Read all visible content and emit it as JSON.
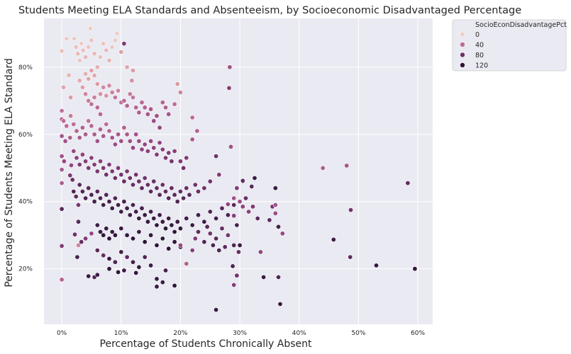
{
  "chart_data": {
    "type": "scatter",
    "title": "Students Meeting ELA Standards and Absenteeism, by Socioeconomic Disadvantaged Percentage",
    "xlabel": "Percentage of Students Chronically Absent",
    "ylabel": "Percentage of Students Meeting ELA Standard",
    "xlim": [
      -0.03,
      0.625
    ],
    "ylim": [
      0.035,
      0.945
    ],
    "x_ticks": [
      0.0,
      0.1,
      0.2,
      0.3,
      0.4,
      0.5,
      0.6
    ],
    "x_tick_labels": [
      "0%",
      "10%",
      "20%",
      "30%",
      "40%",
      "50%",
      "60%"
    ],
    "y_ticks": [
      0.2,
      0.4,
      0.6,
      0.8
    ],
    "y_tick_labels": [
      "20%",
      "40%",
      "60%",
      "80%"
    ],
    "grid": true,
    "legend": {
      "title": "SocioEconDisadvantagePct",
      "placement": "outside-top-right",
      "entries": [
        {
          "label": "0",
          "color": "#efd0c8"
        },
        {
          "label": "40",
          "color": "#bc6c95"
        },
        {
          "label": "80",
          "color": "#6c3268"
        },
        {
          "label": "120",
          "color": "#2b1638"
        }
      ]
    },
    "hue_range": [
      0,
      120
    ],
    "points": [
      [
        0.0,
        0.848,
        8
      ],
      [
        0.0,
        0.67,
        38
      ],
      [
        0.0,
        0.645,
        44
      ],
      [
        0.0,
        0.595,
        52
      ],
      [
        0.0,
        0.535,
        55
      ],
      [
        0.0,
        0.495,
        50
      ],
      [
        0.0,
        0.455,
        48
      ],
      [
        0.0,
        0.378,
        90
      ],
      [
        0.0,
        0.268,
        70
      ],
      [
        0.0,
        0.168,
        45
      ],
      [
        0.003,
        0.74,
        18
      ],
      [
        0.003,
        0.64,
        40
      ],
      [
        0.008,
        0.885,
        4
      ],
      [
        0.012,
        0.776,
        12
      ],
      [
        0.015,
        0.71,
        22
      ],
      [
        0.008,
        0.625,
        40
      ],
      [
        0.014,
        0.59,
        48
      ],
      [
        0.006,
        0.58,
        55
      ],
      [
        0.004,
        0.52,
        60
      ],
      [
        0.016,
        0.508,
        62
      ],
      [
        0.014,
        0.478,
        72
      ],
      [
        0.018,
        0.465,
        80
      ],
      [
        0.02,
        0.43,
        95
      ],
      [
        0.024,
        0.415,
        88
      ],
      [
        0.028,
        0.39,
        75
      ],
      [
        0.028,
        0.34,
        92
      ],
      [
        0.022,
        0.302,
        78
      ],
      [
        0.026,
        0.235,
        100
      ],
      [
        0.028,
        0.27,
        30
      ],
      [
        0.033,
        0.28,
        85
      ],
      [
        0.045,
        0.178,
        110
      ],
      [
        0.055,
        0.175,
        95
      ],
      [
        0.06,
        0.182,
        105
      ],
      [
        0.021,
        0.885,
        5
      ],
      [
        0.024,
        0.86,
        8
      ],
      [
        0.027,
        0.84,
        10
      ],
      [
        0.03,
        0.82,
        6
      ],
      [
        0.033,
        0.87,
        4
      ],
      [
        0.036,
        0.85,
        8
      ],
      [
        0.04,
        0.83,
        12
      ],
      [
        0.045,
        0.86,
        6
      ],
      [
        0.048,
        0.915,
        3
      ],
      [
        0.05,
        0.88,
        7
      ],
      [
        0.055,
        0.84,
        10
      ],
      [
        0.06,
        0.8,
        14
      ],
      [
        0.065,
        0.83,
        8
      ],
      [
        0.07,
        0.87,
        6
      ],
      [
        0.075,
        0.85,
        10
      ],
      [
        0.08,
        0.82,
        12
      ],
      [
        0.085,
        0.86,
        5
      ],
      [
        0.09,
        0.88,
        4
      ],
      [
        0.093,
        0.9,
        3
      ],
      [
        0.1,
        0.845,
        20
      ],
      [
        0.105,
        0.87,
        72
      ],
      [
        0.11,
        0.8,
        18
      ],
      [
        0.12,
        0.79,
        22
      ],
      [
        0.118,
        0.76,
        26
      ],
      [
        0.04,
        0.78,
        14
      ],
      [
        0.045,
        0.765,
        18
      ],
      [
        0.05,
        0.79,
        20
      ],
      [
        0.055,
        0.775,
        16
      ],
      [
        0.06,
        0.75,
        22
      ],
      [
        0.065,
        0.72,
        26
      ],
      [
        0.07,
        0.74,
        28
      ],
      [
        0.075,
        0.715,
        24
      ],
      [
        0.03,
        0.76,
        16
      ],
      [
        0.035,
        0.74,
        20
      ],
      [
        0.04,
        0.72,
        30
      ],
      [
        0.045,
        0.7,
        34
      ],
      [
        0.05,
        0.69,
        38
      ],
      [
        0.055,
        0.71,
        32
      ],
      [
        0.06,
        0.68,
        40
      ],
      [
        0.065,
        0.66,
        42
      ],
      [
        0.08,
        0.745,
        28
      ],
      [
        0.085,
        0.725,
        32
      ],
      [
        0.09,
        0.71,
        36
      ],
      [
        0.095,
        0.73,
        30
      ],
      [
        0.1,
        0.695,
        38
      ],
      [
        0.105,
        0.7,
        40
      ],
      [
        0.11,
        0.685,
        44
      ],
      [
        0.115,
        0.72,
        34
      ],
      [
        0.12,
        0.71,
        36
      ],
      [
        0.125,
        0.68,
        44
      ],
      [
        0.13,
        0.665,
        48
      ],
      [
        0.135,
        0.695,
        42
      ],
      [
        0.14,
        0.68,
        46
      ],
      [
        0.145,
        0.66,
        52
      ],
      [
        0.15,
        0.675,
        50
      ],
      [
        0.155,
        0.64,
        58
      ],
      [
        0.16,
        0.655,
        55
      ],
      [
        0.165,
        0.62,
        62
      ],
      [
        0.17,
        0.695,
        44
      ],
      [
        0.175,
        0.68,
        46
      ],
      [
        0.18,
        0.66,
        52
      ],
      [
        0.19,
        0.69,
        40
      ],
      [
        0.195,
        0.75,
        22
      ],
      [
        0.2,
        0.725,
        30
      ],
      [
        0.015,
        0.655,
        34
      ],
      [
        0.02,
        0.63,
        40
      ],
      [
        0.025,
        0.61,
        44
      ],
      [
        0.03,
        0.59,
        50
      ],
      [
        0.035,
        0.62,
        46
      ],
      [
        0.04,
        0.6,
        48
      ],
      [
        0.045,
        0.64,
        38
      ],
      [
        0.05,
        0.625,
        42
      ],
      [
        0.055,
        0.6,
        48
      ],
      [
        0.06,
        0.58,
        54
      ],
      [
        0.065,
        0.615,
        46
      ],
      [
        0.07,
        0.595,
        50
      ],
      [
        0.075,
        0.63,
        40
      ],
      [
        0.08,
        0.61,
        44
      ],
      [
        0.085,
        0.59,
        52
      ],
      [
        0.09,
        0.57,
        58
      ],
      [
        0.095,
        0.6,
        50
      ],
      [
        0.1,
        0.58,
        56
      ],
      [
        0.105,
        0.62,
        46
      ],
      [
        0.11,
        0.6,
        50
      ],
      [
        0.115,
        0.58,
        56
      ],
      [
        0.12,
        0.56,
        62
      ],
      [
        0.125,
        0.6,
        54
      ],
      [
        0.13,
        0.58,
        58
      ],
      [
        0.135,
        0.555,
        64
      ],
      [
        0.14,
        0.57,
        62
      ],
      [
        0.145,
        0.55,
        66
      ],
      [
        0.15,
        0.58,
        60
      ],
      [
        0.155,
        0.56,
        64
      ],
      [
        0.16,
        0.54,
        70
      ],
      [
        0.165,
        0.575,
        62
      ],
      [
        0.17,
        0.555,
        66
      ],
      [
        0.175,
        0.53,
        72
      ],
      [
        0.18,
        0.545,
        70
      ],
      [
        0.185,
        0.52,
        76
      ],
      [
        0.19,
        0.55,
        66
      ],
      [
        0.2,
        0.52,
        72
      ],
      [
        0.205,
        0.5,
        78
      ],
      [
        0.21,
        0.53,
        70
      ],
      [
        0.22,
        0.585,
        50
      ],
      [
        0.228,
        0.61,
        46
      ],
      [
        0.22,
        0.65,
        40
      ],
      [
        0.02,
        0.55,
        60
      ],
      [
        0.025,
        0.53,
        66
      ],
      [
        0.03,
        0.51,
        70
      ],
      [
        0.035,
        0.54,
        64
      ],
      [
        0.04,
        0.52,
        68
      ],
      [
        0.045,
        0.5,
        72
      ],
      [
        0.05,
        0.53,
        66
      ],
      [
        0.055,
        0.51,
        70
      ],
      [
        0.06,
        0.49,
        74
      ],
      [
        0.065,
        0.52,
        68
      ],
      [
        0.07,
        0.5,
        72
      ],
      [
        0.075,
        0.48,
        78
      ],
      [
        0.08,
        0.51,
        70
      ],
      [
        0.085,
        0.49,
        74
      ],
      [
        0.09,
        0.47,
        80
      ],
      [
        0.095,
        0.5,
        72
      ],
      [
        0.1,
        0.48,
        76
      ],
      [
        0.105,
        0.46,
        82
      ],
      [
        0.11,
        0.49,
        74
      ],
      [
        0.115,
        0.47,
        78
      ],
      [
        0.12,
        0.45,
        84
      ],
      [
        0.125,
        0.48,
        76
      ],
      [
        0.13,
        0.46,
        80
      ],
      [
        0.135,
        0.44,
        86
      ],
      [
        0.14,
        0.47,
        78
      ],
      [
        0.145,
        0.45,
        82
      ],
      [
        0.15,
        0.43,
        88
      ],
      [
        0.155,
        0.46,
        80
      ],
      [
        0.16,
        0.44,
        84
      ],
      [
        0.165,
        0.42,
        90
      ],
      [
        0.17,
        0.45,
        82
      ],
      [
        0.175,
        0.43,
        86
      ],
      [
        0.18,
        0.41,
        92
      ],
      [
        0.185,
        0.44,
        84
      ],
      [
        0.19,
        0.42,
        88
      ],
      [
        0.195,
        0.4,
        94
      ],
      [
        0.2,
        0.43,
        86
      ],
      [
        0.205,
        0.41,
        90
      ],
      [
        0.21,
        0.44,
        82
      ],
      [
        0.215,
        0.42,
        88
      ],
      [
        0.225,
        0.45,
        80
      ],
      [
        0.23,
        0.43,
        84
      ],
      [
        0.24,
        0.44,
        80
      ],
      [
        0.25,
        0.46,
        76
      ],
      [
        0.26,
        0.535,
        80
      ],
      [
        0.265,
        0.48,
        70
      ],
      [
        0.03,
        0.45,
        90
      ],
      [
        0.035,
        0.43,
        94
      ],
      [
        0.04,
        0.41,
        98
      ],
      [
        0.045,
        0.44,
        90
      ],
      [
        0.05,
        0.42,
        96
      ],
      [
        0.055,
        0.4,
        100
      ],
      [
        0.06,
        0.43,
        92
      ],
      [
        0.065,
        0.41,
        98
      ],
      [
        0.07,
        0.39,
        102
      ],
      [
        0.075,
        0.42,
        94
      ],
      [
        0.08,
        0.4,
        100
      ],
      [
        0.085,
        0.38,
        104
      ],
      [
        0.09,
        0.41,
        96
      ],
      [
        0.095,
        0.39,
        102
      ],
      [
        0.1,
        0.37,
        106
      ],
      [
        0.105,
        0.4,
        98
      ],
      [
        0.11,
        0.38,
        104
      ],
      [
        0.115,
        0.36,
        108
      ],
      [
        0.12,
        0.39,
        100
      ],
      [
        0.125,
        0.37,
        106
      ],
      [
        0.13,
        0.35,
        110
      ],
      [
        0.135,
        0.38,
        102
      ],
      [
        0.14,
        0.36,
        108
      ],
      [
        0.145,
        0.34,
        112
      ],
      [
        0.15,
        0.37,
        104
      ],
      [
        0.155,
        0.35,
        110
      ],
      [
        0.16,
        0.33,
        114
      ],
      [
        0.165,
        0.36,
        106
      ],
      [
        0.17,
        0.34,
        110
      ],
      [
        0.175,
        0.32,
        116
      ],
      [
        0.18,
        0.35,
        108
      ],
      [
        0.185,
        0.33,
        112
      ],
      [
        0.19,
        0.31,
        118
      ],
      [
        0.195,
        0.34,
        110
      ],
      [
        0.2,
        0.32,
        114
      ],
      [
        0.21,
        0.35,
        106
      ],
      [
        0.22,
        0.33,
        110
      ],
      [
        0.23,
        0.36,
        102
      ],
      [
        0.24,
        0.34,
        106
      ],
      [
        0.25,
        0.37,
        98
      ],
      [
        0.26,
        0.35,
        102
      ],
      [
        0.27,
        0.38,
        94
      ],
      [
        0.28,
        0.36,
        98
      ],
      [
        0.29,
        0.39,
        90
      ],
      [
        0.06,
        0.33,
        108
      ],
      [
        0.065,
        0.31,
        112
      ],
      [
        0.07,
        0.3,
        116
      ],
      [
        0.075,
        0.32,
        110
      ],
      [
        0.08,
        0.29,
        118
      ],
      [
        0.085,
        0.31,
        112
      ],
      [
        0.09,
        0.3,
        116
      ],
      [
        0.1,
        0.32,
        110
      ],
      [
        0.11,
        0.3,
        114
      ],
      [
        0.12,
        0.29,
        118
      ],
      [
        0.13,
        0.31,
        112
      ],
      [
        0.14,
        0.28,
        120
      ],
      [
        0.15,
        0.3,
        114
      ],
      [
        0.16,
        0.27,
        120
      ],
      [
        0.17,
        0.29,
        116
      ],
      [
        0.18,
        0.26,
        120
      ],
      [
        0.19,
        0.28,
        116
      ],
      [
        0.2,
        0.265,
        118
      ],
      [
        0.04,
        0.29,
        70
      ],
      [
        0.05,
        0.305,
        60
      ],
      [
        0.06,
        0.255,
        90
      ],
      [
        0.07,
        0.24,
        84
      ],
      [
        0.08,
        0.23,
        110
      ],
      [
        0.09,
        0.22,
        96
      ],
      [
        0.1,
        0.25,
        104
      ],
      [
        0.11,
        0.235,
        88
      ],
      [
        0.12,
        0.22,
        100
      ],
      [
        0.13,
        0.205,
        112
      ],
      [
        0.14,
        0.235,
        96
      ],
      [
        0.15,
        0.21,
        108
      ],
      [
        0.08,
        0.2,
        115
      ],
      [
        0.095,
        0.19,
        118
      ],
      [
        0.105,
        0.195,
        110
      ],
      [
        0.125,
        0.188,
        115
      ],
      [
        0.16,
        0.17,
        112
      ],
      [
        0.17,
        0.16,
        105
      ],
      [
        0.16,
        0.147,
        110
      ],
      [
        0.175,
        0.195,
        102
      ],
      [
        0.19,
        0.15,
        118
      ],
      [
        0.2,
        0.27,
        60
      ],
      [
        0.21,
        0.215,
        46
      ],
      [
        0.22,
        0.255,
        66
      ],
      [
        0.225,
        0.29,
        70
      ],
      [
        0.23,
        0.31,
        88
      ],
      [
        0.24,
        0.28,
        94
      ],
      [
        0.245,
        0.325,
        92
      ],
      [
        0.25,
        0.305,
        78
      ],
      [
        0.255,
        0.27,
        96
      ],
      [
        0.26,
        0.29,
        90
      ],
      [
        0.265,
        0.255,
        98
      ],
      [
        0.27,
        0.32,
        84
      ],
      [
        0.275,
        0.265,
        88
      ],
      [
        0.28,
        0.3,
        76
      ],
      [
        0.283,
        0.8,
        55
      ],
      [
        0.282,
        0.738,
        70
      ],
      [
        0.285,
        0.563,
        55
      ],
      [
        0.28,
        0.392,
        62
      ],
      [
        0.29,
        0.41,
        55
      ],
      [
        0.295,
        0.44,
        70
      ],
      [
        0.29,
        0.358,
        66
      ],
      [
        0.3,
        0.4,
        58
      ],
      [
        0.29,
        0.27,
        94
      ],
      [
        0.298,
        0.25,
        84
      ],
      [
        0.3,
        0.27,
        110
      ],
      [
        0.288,
        0.208,
        96
      ],
      [
        0.295,
        0.18,
        78
      ],
      [
        0.29,
        0.152,
        70
      ],
      [
        0.305,
        0.46,
        78
      ],
      [
        0.31,
        0.41,
        84
      ],
      [
        0.315,
        0.37,
        66
      ],
      [
        0.32,
        0.445,
        90
      ],
      [
        0.322,
        0.385,
        72
      ],
      [
        0.33,
        0.35,
        90
      ],
      [
        0.305,
        0.385,
        64
      ],
      [
        0.295,
        0.33,
        100
      ],
      [
        0.26,
        0.078,
        112
      ],
      [
        0.305,
        0.462,
        84
      ],
      [
        0.325,
        0.47,
        110
      ],
      [
        0.335,
        0.25,
        62
      ],
      [
        0.34,
        0.175,
        110
      ],
      [
        0.35,
        0.345,
        86
      ],
      [
        0.355,
        0.385,
        76
      ],
      [
        0.36,
        0.44,
        110
      ],
      [
        0.36,
        0.39,
        55
      ],
      [
        0.365,
        0.325,
        100
      ],
      [
        0.365,
        0.175,
        95
      ],
      [
        0.368,
        0.095,
        115
      ],
      [
        0.372,
        0.305,
        60
      ],
      [
        0.36,
        0.365,
        58
      ],
      [
        0.44,
        0.5,
        48
      ],
      [
        0.48,
        0.507,
        52
      ],
      [
        0.458,
        0.287,
        110
      ],
      [
        0.486,
        0.235,
        88
      ],
      [
        0.487,
        0.375,
        78
      ],
      [
        0.53,
        0.21,
        115
      ],
      [
        0.583,
        0.455,
        88
      ],
      [
        0.595,
        0.2,
        118
      ]
    ]
  }
}
